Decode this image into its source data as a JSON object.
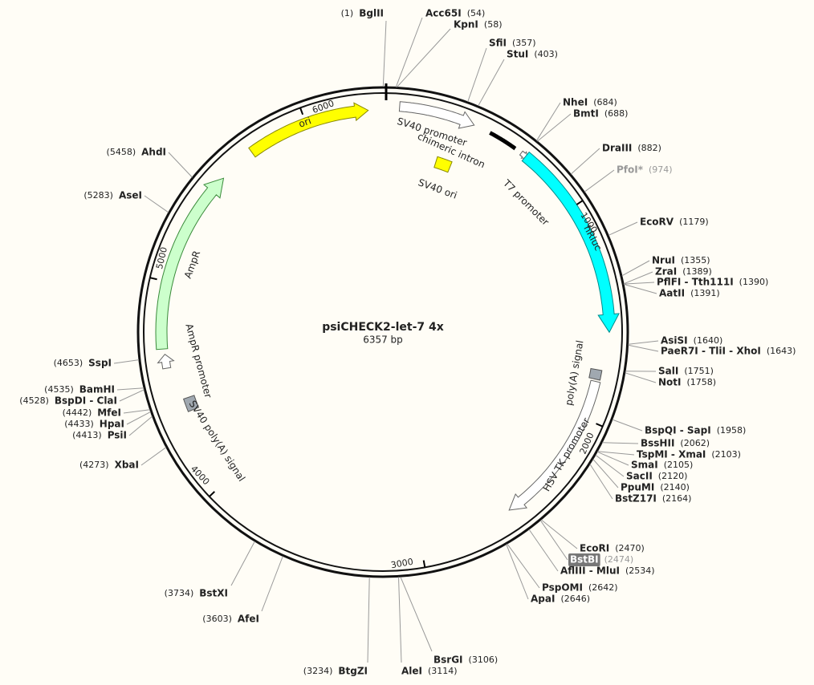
{
  "title": "psiCHECK2-let-7 4x",
  "length": "6357 bp",
  "sites": [
    {
      "name": "BglII",
      "position": "(1)"
    },
    {
      "name": "Acc65I",
      "position": "(54)"
    },
    {
      "name": "KpnI",
      "position": "(58)"
    },
    {
      "name": "SfiI",
      "position": "(357)"
    },
    {
      "name": "StuI",
      "position": "(403)"
    },
    {
      "name": "NheI",
      "position": "(684)"
    },
    {
      "name": "BmtI",
      "position": "(688)"
    },
    {
      "name": "DraIII",
      "position": "(882)"
    },
    {
      "name": "PfoI*",
      "position": "(974)",
      "style": "muted"
    },
    {
      "name": "EcoRV",
      "position": "(1179)"
    },
    {
      "name": "NruI",
      "position": "(1355)"
    },
    {
      "name": "ZraI",
      "position": "(1389)"
    },
    {
      "name": "PflFI - Tth111I",
      "position": "(1390)"
    },
    {
      "name": "AatII",
      "position": "(1391)"
    },
    {
      "name": "AsiSI",
      "position": "(1640)"
    },
    {
      "name": "PaeR7I - TliI - XhoI",
      "position": "(1643)"
    },
    {
      "name": "SalI",
      "position": "(1751)"
    },
    {
      "name": "NotI",
      "position": "(1758)"
    },
    {
      "name": "BspQI - SapI",
      "position": "(1958)"
    },
    {
      "name": "BssHII",
      "position": "(2062)"
    },
    {
      "name": "TspMI - XmaI",
      "position": "(2103)"
    },
    {
      "name": "SmaI",
      "position": "(2105)"
    },
    {
      "name": "SacII",
      "position": "(2120)"
    },
    {
      "name": "PpuMI",
      "position": "(2140)"
    },
    {
      "name": "BstZ17I",
      "position": "(2164)"
    },
    {
      "name": "EcoRI",
      "position": "(2470)"
    },
    {
      "name": "BstBI",
      "position": "(2474)",
      "style": "boxed"
    },
    {
      "name": "AflIII - MluI",
      "position": "(2534)"
    },
    {
      "name": "PspOMI",
      "position": "(2642)"
    },
    {
      "name": "ApaI",
      "position": "(2646)"
    },
    {
      "name": "BsrGI",
      "position": "(3106)"
    },
    {
      "name": "AleI",
      "position": "(3114)"
    },
    {
      "name": "BtgZI",
      "position": "(3234)"
    },
    {
      "name": "AfeI",
      "position": "(3603)"
    },
    {
      "name": "BstXI",
      "position": "(3734)"
    },
    {
      "name": "XbaI",
      "position": "(4273)"
    },
    {
      "name": "PsiI",
      "position": "(4413)"
    },
    {
      "name": "HpaI",
      "position": "(4433)"
    },
    {
      "name": "MfeI",
      "position": "(4442)"
    },
    {
      "name": "BspDI - ClaI",
      "position": "(4528)"
    },
    {
      "name": "BamHI",
      "position": "(4535)"
    },
    {
      "name": "SspI",
      "position": "(4653)"
    },
    {
      "name": "AseI",
      "position": "(5283)"
    },
    {
      "name": "AhdI",
      "position": "(5458)"
    }
  ],
  "features": [
    {
      "label": "ori"
    },
    {
      "label": "SV40 promoter"
    },
    {
      "label": "chimeric intron"
    },
    {
      "label": "T7 promoter"
    },
    {
      "label": "hRluc"
    },
    {
      "label": "SV40 ori"
    },
    {
      "label": "poly(A) signal"
    },
    {
      "label": "HSV TK promoter"
    },
    {
      "label": "AmpR"
    },
    {
      "label": "AmpR promoter"
    },
    {
      "label": "SV40 poly(A) signal"
    }
  ],
  "ruler": [
    "1000",
    "2000",
    "3000",
    "4000",
    "5000",
    "6000"
  ]
}
